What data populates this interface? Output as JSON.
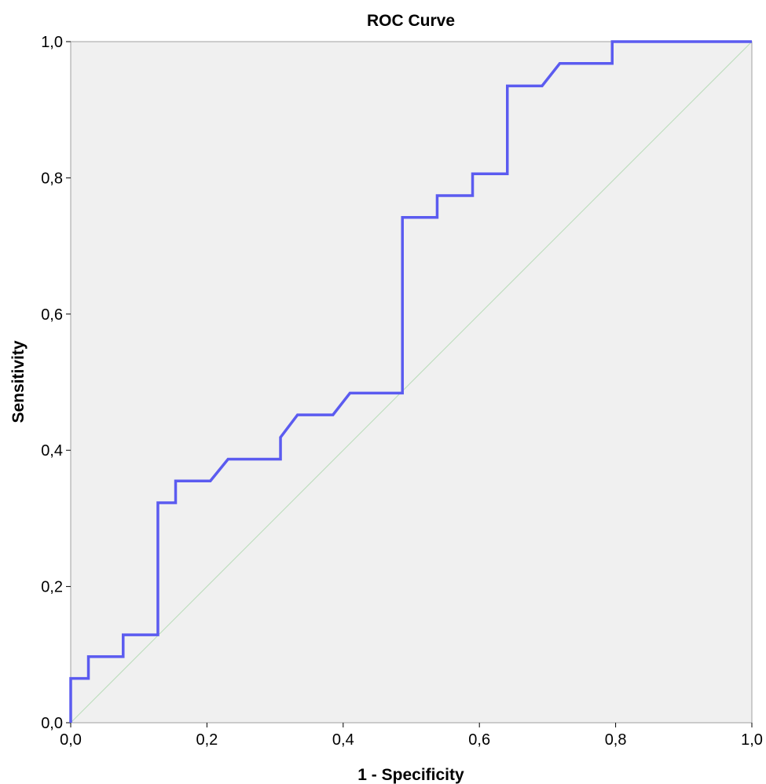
{
  "chart_data": {
    "type": "line",
    "title": "ROC Curve",
    "xlabel": "1 - Specificity",
    "ylabel": "Sensitivity",
    "xlim": [
      0,
      1
    ],
    "ylim": [
      0,
      1
    ],
    "x_ticks": [
      0,
      0.2,
      0.4,
      0.6,
      0.8,
      1
    ],
    "y_ticks": [
      0,
      0.2,
      0.4,
      0.6,
      0.8,
      1
    ],
    "x_tick_labels": [
      "0,0",
      "0,2",
      "0,4",
      "0,6",
      "0,8",
      "1,0"
    ],
    "y_tick_labels": [
      "0,0",
      "0,2",
      "0,4",
      "0,6",
      "0,8",
      "1,0"
    ],
    "grid": false,
    "background_color": "#f0f0f0",
    "series": [
      {
        "color": "#5b5bf0",
        "x": [
          0,
          0,
          0.026,
          0.026,
          0.077,
          0.077,
          0.128,
          0.128,
          0.154,
          0.154,
          0.205,
          0.231,
          0.308,
          0.308,
          0.333,
          0.385,
          0.41,
          0.487,
          0.487,
          0.538,
          0.538,
          0.59,
          0.59,
          0.641,
          0.641,
          0.692,
          0.718,
          0.795,
          0.795,
          1
        ],
        "y": [
          0,
          0.065,
          0.065,
          0.097,
          0.097,
          0.129,
          0.129,
          0.323,
          0.323,
          0.355,
          0.355,
          0.387,
          0.387,
          0.419,
          0.452,
          0.452,
          0.484,
          0.484,
          0.742,
          0.742,
          0.774,
          0.774,
          0.806,
          0.806,
          0.935,
          0.935,
          0.968,
          0.968,
          1,
          1
        ]
      },
      {
        "color": "#b8dcb8",
        "x": [
          0,
          1
        ],
        "y": [
          0,
          1
        ]
      }
    ]
  }
}
